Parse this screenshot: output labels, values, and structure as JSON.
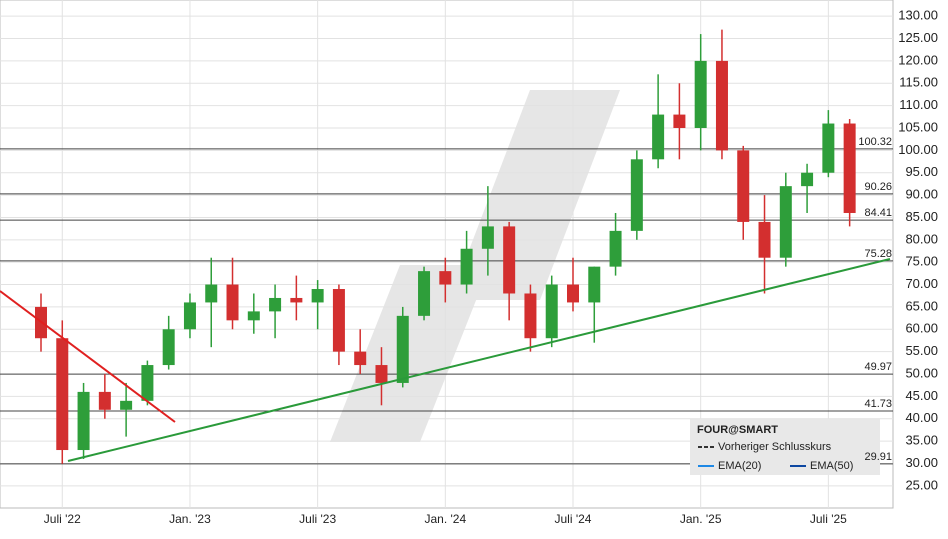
{
  "chart_data": {
    "type": "candlestick",
    "categories": [
      null,
      "Juli '22",
      null,
      null,
      null,
      null,
      null,
      "Jan. '23",
      null,
      null,
      null,
      null,
      null,
      "Juli '23",
      null,
      null,
      null,
      null,
      null,
      "Jan. '24",
      null,
      null,
      null,
      null,
      null,
      "Juli '24",
      null,
      null,
      null,
      null,
      null,
      "Jan. '25",
      null,
      null,
      null,
      null,
      null,
      "Juli '25",
      null
    ],
    "open": [
      65,
      58,
      33,
      46,
      42,
      44,
      52,
      60,
      66,
      70,
      62,
      64,
      67,
      66,
      69,
      55,
      52,
      48,
      63,
      73,
      70,
      78,
      83,
      68,
      58,
      70,
      66,
      74,
      82,
      98,
      108,
      105,
      120,
      100,
      84,
      76,
      92,
      95,
      106
    ],
    "high": [
      68,
      62,
      48,
      50,
      48,
      53,
      63,
      68,
      76,
      76,
      68,
      70,
      72,
      71,
      70,
      60,
      56,
      65,
      74,
      76,
      82,
      92,
      84,
      70,
      72,
      76,
      74,
      86,
      100,
      117,
      115,
      126,
      127,
      101,
      90,
      95,
      97,
      109,
      107
    ],
    "low": [
      55,
      29.9,
      31,
      40,
      36,
      43,
      51,
      58,
      56,
      60,
      59,
      58,
      62,
      60,
      52,
      50,
      43,
      47,
      62,
      66,
      68,
      72,
      62,
      55,
      56,
      64,
      57,
      72,
      80,
      96,
      98,
      100,
      98,
      80,
      68,
      74,
      86,
      94,
      83
    ],
    "close": [
      58,
      33,
      46,
      42,
      44,
      52,
      60,
      66,
      70,
      62,
      64,
      67,
      66,
      69,
      55,
      52,
      48,
      63,
      73,
      70,
      78,
      83,
      68,
      58,
      70,
      66,
      74,
      82,
      98,
      108,
      105,
      120,
      100,
      84,
      76,
      92,
      95,
      106,
      86
    ],
    "up_color": "#2e9e3a",
    "down_color": "#d32f2f",
    "levels": [
      100.32,
      90.26,
      84.41,
      75.28,
      49.97,
      41.73,
      29.91
    ],
    "ylim": [
      22.5,
      132.5
    ],
    "yticks": [
      {
        "value": 25,
        "label": "25.00"
      },
      {
        "value": 30,
        "label": "30.00"
      },
      {
        "value": 35,
        "label": "35.00"
      },
      {
        "value": 40,
        "label": "40.00"
      },
      {
        "value": 45,
        "label": "45.00"
      },
      {
        "value": 50,
        "label": "50.00"
      },
      {
        "value": 55,
        "label": "55.00"
      },
      {
        "value": 60,
        "label": "60.00"
      },
      {
        "value": 65,
        "label": "65.00"
      },
      {
        "value": 70,
        "label": "70.00"
      },
      {
        "value": 75,
        "label": "75.00"
      },
      {
        "value": 80,
        "label": "80.00"
      },
      {
        "value": 85,
        "label": "85.00"
      },
      {
        "value": 90,
        "label": "90.00"
      },
      {
        "value": 95,
        "label": "95.00"
      },
      {
        "value": 100,
        "label": "100.00"
      },
      {
        "value": 105,
        "label": "105.00"
      },
      {
        "value": 110,
        "label": "110.00"
      },
      {
        "value": 115,
        "label": "115.00"
      },
      {
        "value": 120,
        "label": "120.00"
      },
      {
        "value": 125,
        "label": "125.00"
      },
      {
        "value": 130,
        "label": "130.00"
      }
    ],
    "grid": true,
    "legend_title": "FOUR@SMART",
    "legend": [
      "Vorheriger Schlusskurs",
      "EMA(20)",
      "EMA(50)"
    ]
  }
}
